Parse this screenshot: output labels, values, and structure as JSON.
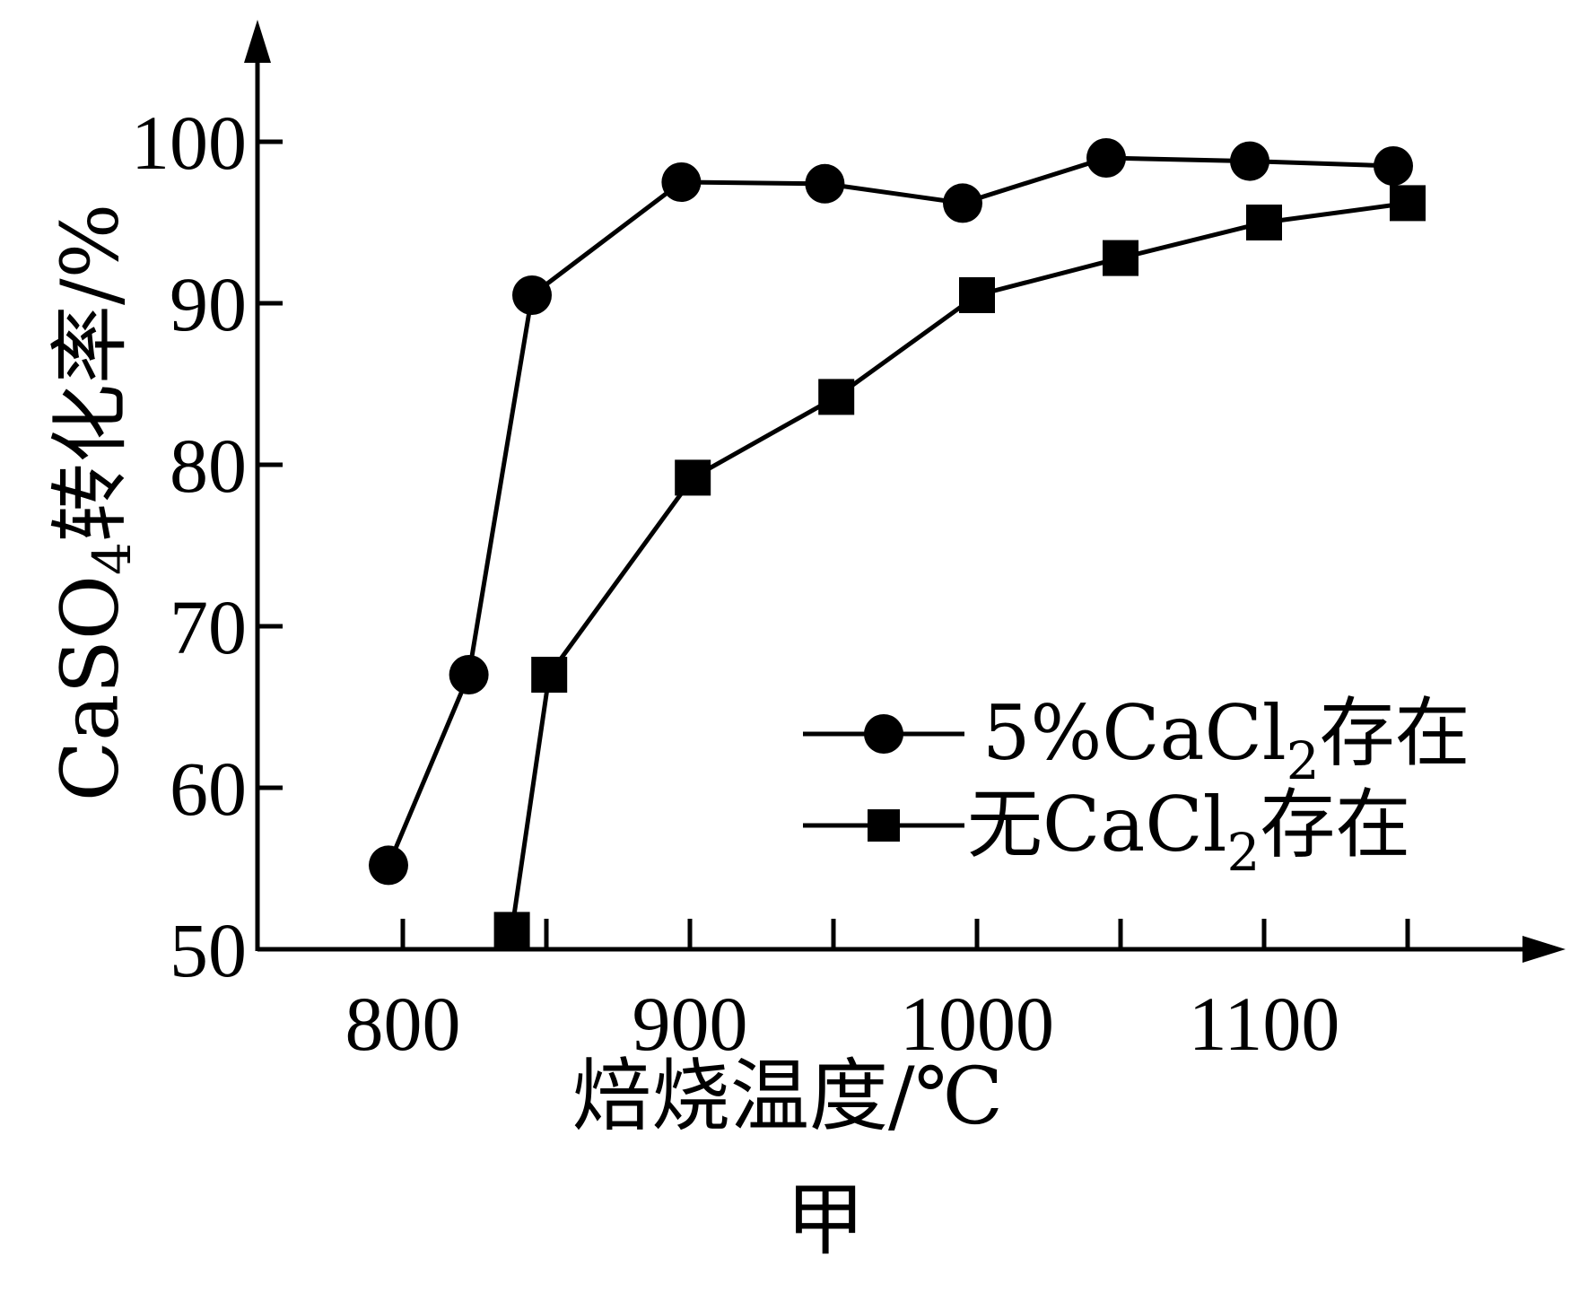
{
  "chart_data": {
    "type": "line",
    "title": "",
    "caption": "甲",
    "xlabel": "焙烧温度/℃",
    "ylabel": {
      "prefix": "CaSO",
      "subscript": "4",
      "suffix": "转化率/%"
    },
    "xlim": [
      750,
      1150
    ],
    "ylim": [
      50,
      100
    ],
    "x_ticks": [
      800,
      850,
      900,
      950,
      1000,
      1050,
      1100,
      1150
    ],
    "x_tick_labels": [
      "800",
      "900",
      "1000",
      "1100"
    ],
    "x_tick_label_values": [
      800,
      900,
      1000,
      1100
    ],
    "y_ticks": [
      50,
      60,
      70,
      80,
      90,
      100
    ],
    "y_tick_labels": [
      "50",
      "60",
      "70",
      "80",
      "90",
      "100"
    ],
    "legend_position": "right-middle",
    "series": [
      {
        "name": {
          "prefix": "5%CaCl",
          "subscript": "2",
          "suffix": "存在"
        },
        "marker": "circle",
        "x": [
          795,
          823,
          845,
          897,
          947,
          995,
          1045,
          1095,
          1145
        ],
        "y": [
          55.2,
          67.0,
          90.5,
          97.5,
          97.4,
          96.2,
          99.0,
          98.8,
          98.5
        ]
      },
      {
        "name": {
          "prefix": "无CaCl",
          "subscript": "2",
          "suffix": "存在"
        },
        "marker": "square",
        "x": [
          838,
          851,
          901,
          951,
          1000,
          1050,
          1100,
          1150
        ],
        "y": [
          51.2,
          67.0,
          79.2,
          84.2,
          90.5,
          92.8,
          95.0,
          96.2
        ]
      }
    ],
    "colors": {
      "line": "#000000",
      "marker": "#000000",
      "axis": "#000000"
    }
  }
}
